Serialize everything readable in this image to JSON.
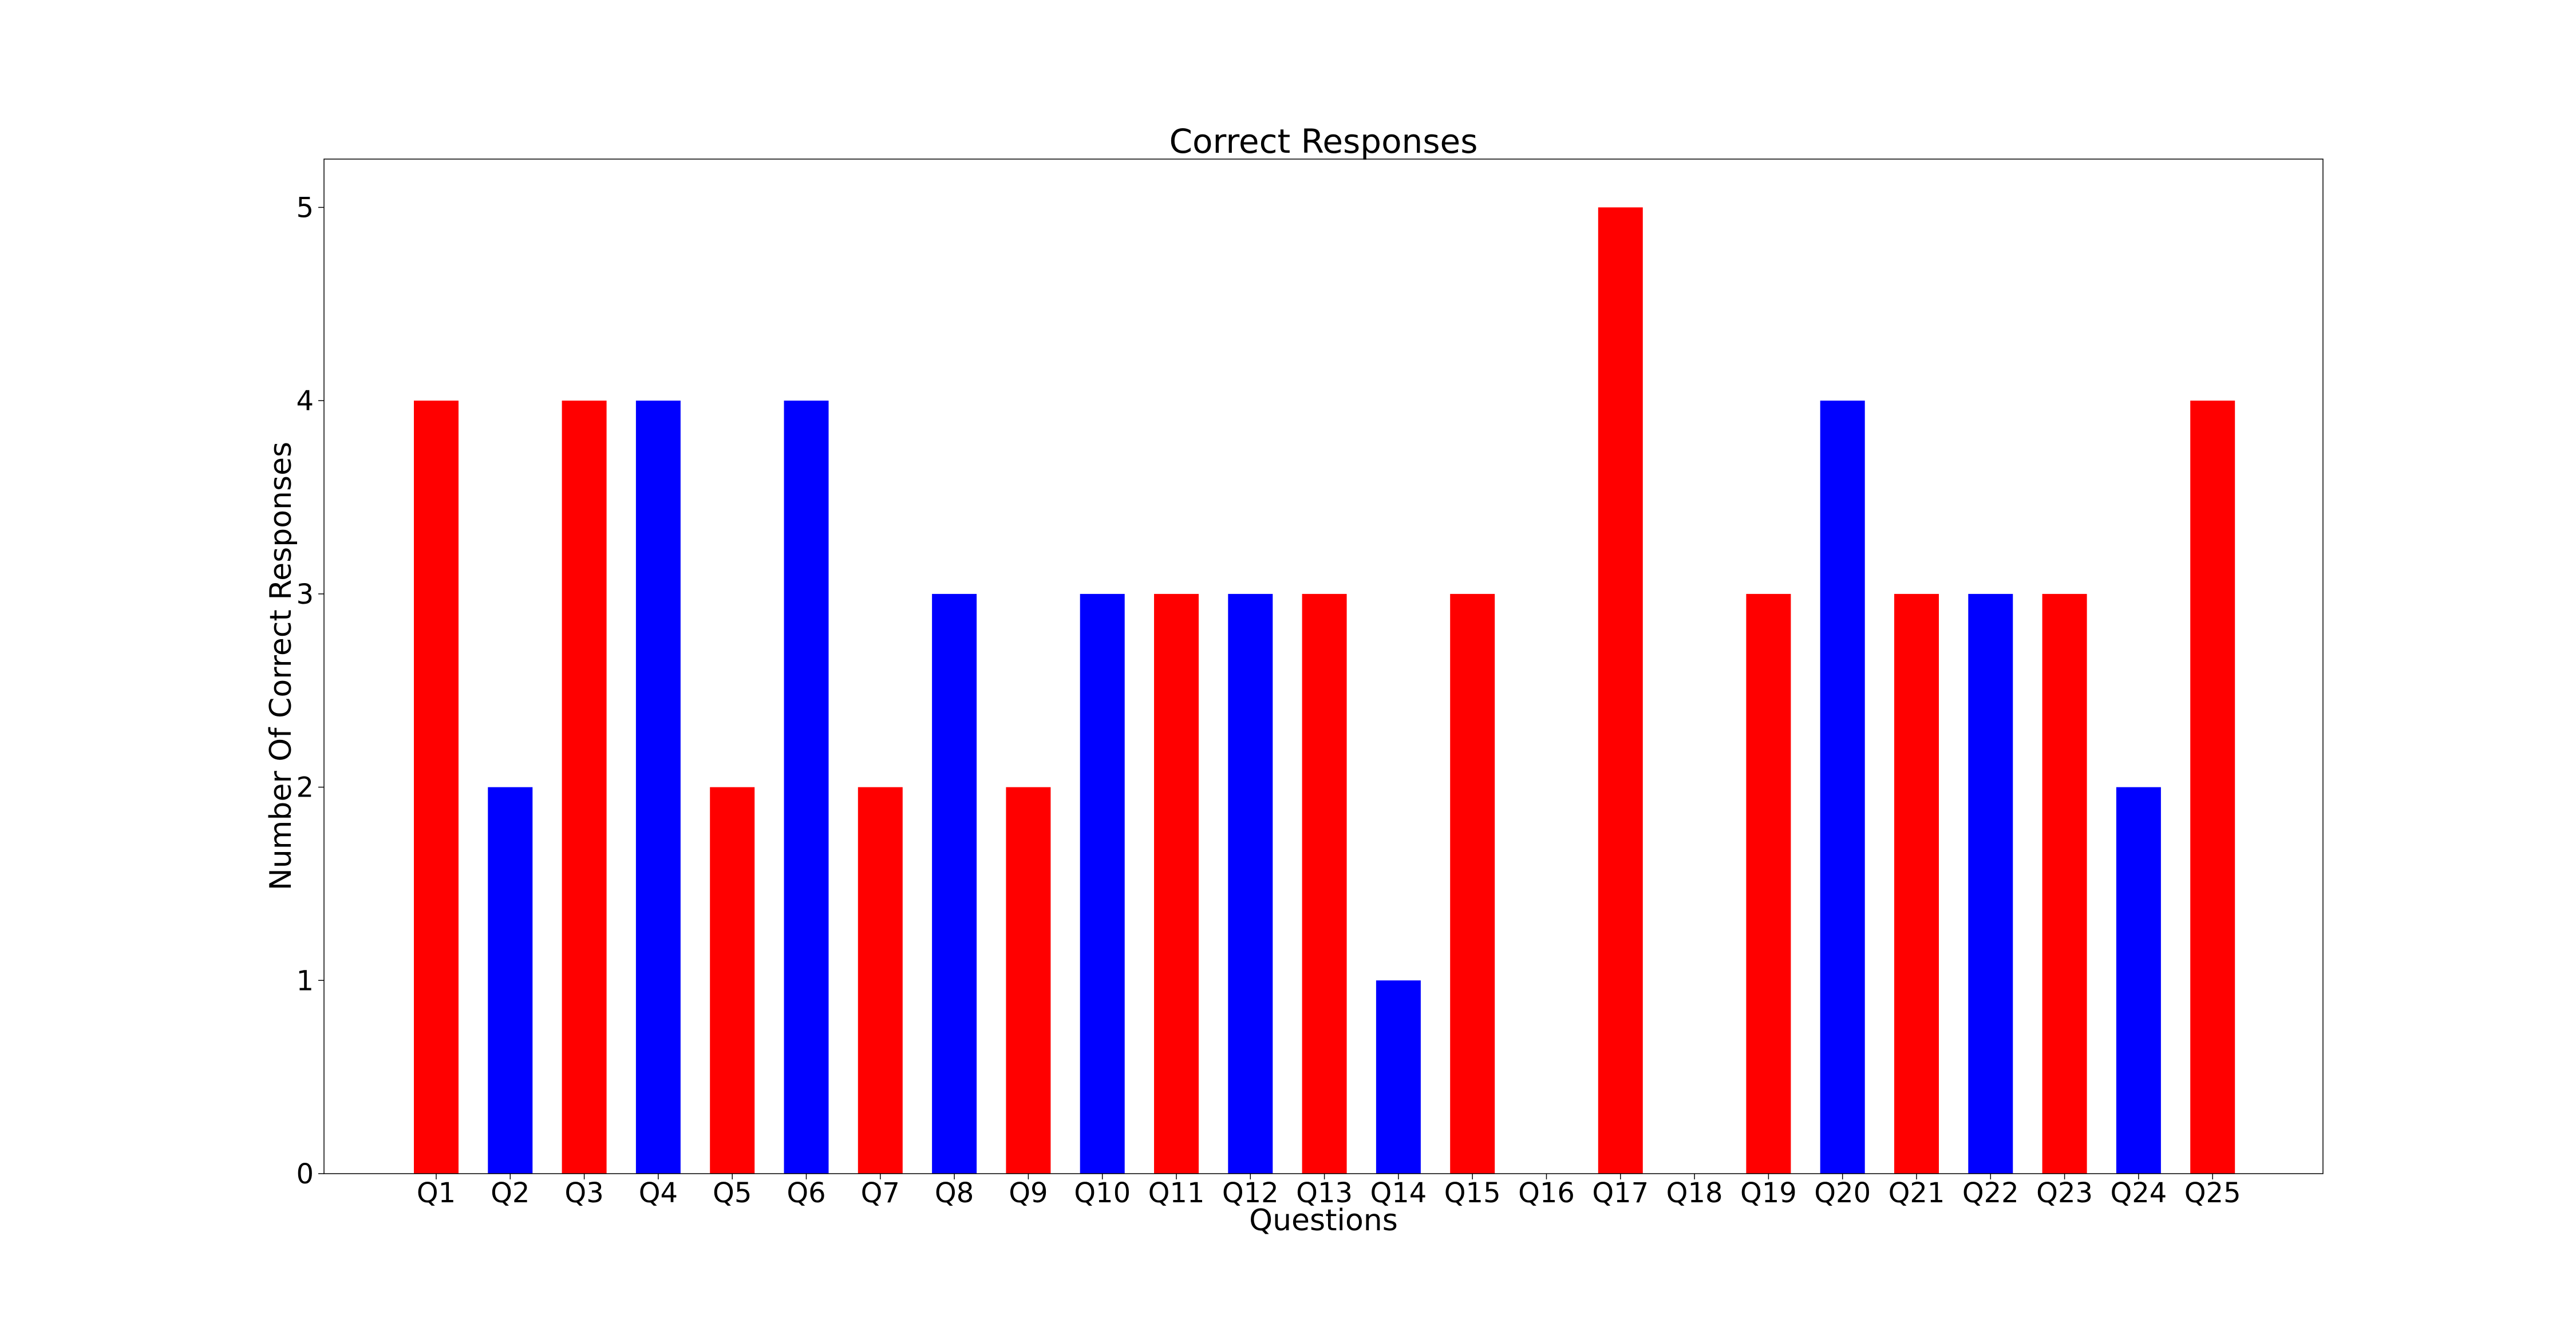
{
  "chart_data": {
    "type": "bar",
    "title": "Correct Responses",
    "xlabel": "Questions",
    "ylabel": "Number Of Correct Responses",
    "categories": [
      "Q1",
      "Q2",
      "Q3",
      "Q4",
      "Q5",
      "Q6",
      "Q7",
      "Q8",
      "Q9",
      "Q10",
      "Q11",
      "Q12",
      "Q13",
      "Q14",
      "Q15",
      "Q16",
      "Q17",
      "Q18",
      "Q19",
      "Q20",
      "Q21",
      "Q22",
      "Q23",
      "Q24",
      "Q25"
    ],
    "values": [
      4,
      2,
      4,
      4,
      2,
      4,
      2,
      3,
      2,
      3,
      3,
      3,
      3,
      1,
      3,
      0,
      5,
      0,
      3,
      4,
      3,
      3,
      3,
      2,
      4
    ],
    "bar_colors": [
      "#ff0000",
      "#0000ff",
      "#ff0000",
      "#0000ff",
      "#ff0000",
      "#0000ff",
      "#ff0000",
      "#0000ff",
      "#ff0000",
      "#0000ff",
      "#ff0000",
      "#0000ff",
      "#ff0000",
      "#0000ff",
      "#ff0000",
      "#0000ff",
      "#ff0000",
      "#0000ff",
      "#ff0000",
      "#0000ff",
      "#ff0000",
      "#0000ff",
      "#ff0000",
      "#0000ff",
      "#ff0000"
    ],
    "yticks": [
      0,
      1,
      2,
      3,
      4,
      5
    ],
    "ylim": [
      0,
      5.25
    ],
    "grid": false,
    "legend": "none"
  }
}
